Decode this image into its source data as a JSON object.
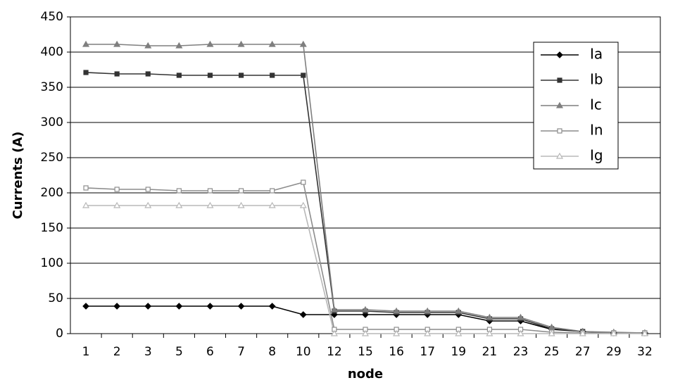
{
  "chart_data": {
    "type": "line",
    "x_label": "node",
    "y_label": "Currents (A)",
    "categories": [
      "1",
      "2",
      "3",
      "5",
      "6",
      "7",
      "8",
      "10",
      "12",
      "15",
      "16",
      "17",
      "19",
      "21",
      "23",
      "25",
      "27",
      "29",
      "32"
    ],
    "ylim": [
      0,
      450
    ],
    "yticks": [
      0,
      50,
      100,
      150,
      200,
      250,
      300,
      350,
      400,
      450
    ],
    "grid": true,
    "legend": "upper right",
    "series": [
      {
        "name": "Ia",
        "color": "#000000",
        "marker": "diamond",
        "filled": true,
        "values": [
          39,
          39,
          39,
          39,
          39,
          39,
          39,
          27,
          27,
          27,
          27,
          27,
          27,
          18,
          18,
          6,
          3,
          1,
          1
        ]
      },
      {
        "name": "Ib",
        "color": "#333333",
        "marker": "square",
        "filled": true,
        "values": [
          371,
          369,
          369,
          367,
          367,
          367,
          367,
          367,
          32,
          32,
          30,
          30,
          30,
          21,
          21,
          7,
          3,
          1,
          1
        ]
      },
      {
        "name": "Ic",
        "color": "#7f7f7f",
        "marker": "triangle",
        "filled": true,
        "values": [
          411,
          411,
          409,
          409,
          411,
          411,
          411,
          411,
          34,
          34,
          32,
          32,
          32,
          23,
          23,
          9,
          3,
          2,
          1
        ]
      },
      {
        "name": "In",
        "color": "#8c8c8c",
        "marker": "square",
        "filled": false,
        "values": [
          207,
          205,
          205,
          203,
          203,
          203,
          203,
          215,
          6,
          6,
          6,
          6,
          6,
          6,
          6,
          2,
          1,
          1,
          1
        ]
      },
      {
        "name": "Ig",
        "color": "#b8b8b8",
        "marker": "triangle",
        "filled": false,
        "values": [
          182,
          182,
          182,
          182,
          182,
          182,
          182,
          182,
          0,
          0,
          0,
          0,
          0,
          0,
          0,
          0,
          0,
          0,
          0
        ]
      }
    ]
  }
}
